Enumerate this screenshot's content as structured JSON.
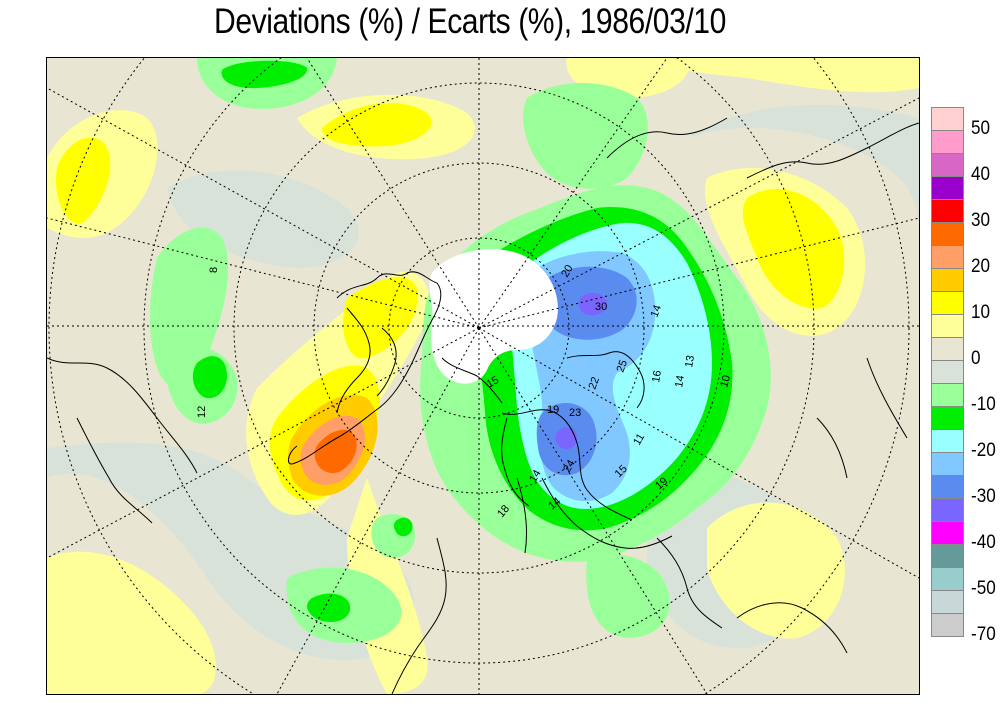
{
  "title": "Deviations (%) / Ecarts (%), 1986/03/10",
  "colors": {
    "background": "#e8e6d2",
    "slight_negative": "#d9e2d9",
    "frame": "#000000"
  },
  "legend": {
    "swatches": [
      {
        "color": "#ffd0d0"
      },
      {
        "color": "#ff9ccc"
      },
      {
        "color": "#d866c6"
      },
      {
        "color": "#9900cc"
      },
      {
        "color": "#ff0000"
      },
      {
        "color": "#ff6a00"
      },
      {
        "color": "#ff9e66"
      },
      {
        "color": "#ffcc00"
      },
      {
        "color": "#ffff00"
      },
      {
        "color": "#ffff99"
      },
      {
        "color": "#e8e6d2"
      },
      {
        "color": "#d9e2d9"
      },
      {
        "color": "#99ff99"
      },
      {
        "color": "#00ee00"
      },
      {
        "color": "#99ffff"
      },
      {
        "color": "#80c8ff"
      },
      {
        "color": "#5a8cf0"
      },
      {
        "color": "#7a66ff"
      },
      {
        "color": "#ff00ff"
      },
      {
        "color": "#669999"
      },
      {
        "color": "#99cccc"
      },
      {
        "color": "#c8d8d8"
      },
      {
        "color": "#cccccc"
      }
    ],
    "ticks": [
      "50",
      "40",
      "30",
      "20",
      "10",
      "0",
      "-10",
      "-20",
      "-30",
      "-40",
      "-50",
      "-70"
    ]
  },
  "contour_labels": [
    "20",
    "30",
    "14",
    "13",
    "10",
    "16",
    "14",
    "25",
    "22",
    "23",
    "19",
    "24",
    "15",
    "14",
    "11",
    "19",
    "14",
    "15",
    "18",
    "12",
    "8"
  ]
}
